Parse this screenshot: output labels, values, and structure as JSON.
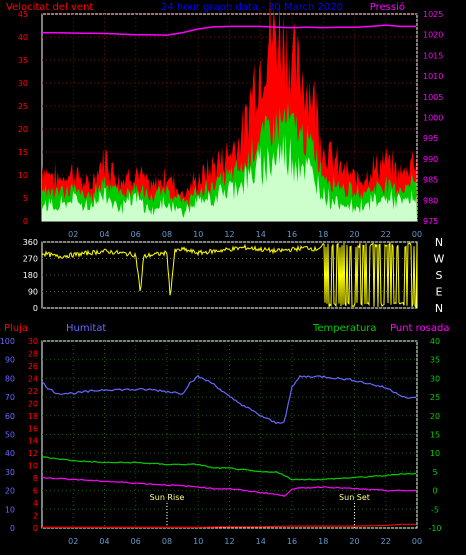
{
  "chart_data": [
    {
      "type": "line",
      "title": "24 hour graph data - 30 March 2020",
      "left_label": "Velocitat del vent",
      "right_label": "Pressió",
      "x_ticks": [
        "02",
        "04",
        "06",
        "08",
        "10",
        "12",
        "14",
        "16",
        "18",
        "20",
        "22",
        "00"
      ],
      "y_left_ticks": [
        "0",
        "5",
        "10",
        "15",
        "20",
        "25",
        "30",
        "35",
        "40",
        "45"
      ],
      "y_right_ticks": [
        "975",
        "980",
        "985",
        "990",
        "995",
        "1000",
        "1005",
        "1010",
        "1015",
        "1020",
        "1025"
      ],
      "ylim_left": [
        0,
        45
      ],
      "ylim_right": [
        975,
        1025
      ],
      "colors": {
        "gust": "#ff0000",
        "avg": "#00cc00",
        "speed": "#ccffcc",
        "pressure": "#ff00ff",
        "title": "#0000ff",
        "left_axis": "#ff0000",
        "right_axis": "#ff00ff"
      },
      "series": [
        {
          "key": "pressure",
          "x": [
            0,
            2,
            4,
            6,
            8,
            9,
            10,
            11,
            12,
            13,
            14,
            15,
            16,
            17,
            18,
            19,
            20,
            21,
            22,
            23,
            24
          ],
          "values": [
            1020.5,
            1020.4,
            1020.3,
            1020,
            1019.9,
            1020.5,
            1021.4,
            1021.9,
            1022,
            1022,
            1022,
            1021.8,
            1021.7,
            1021.8,
            1021.7,
            1021.8,
            1021.8,
            1022,
            1022.3,
            1022,
            1022
          ]
        },
        {
          "key": "gust",
          "x": [
            0,
            1,
            2,
            3,
            4,
            5,
            6,
            7,
            8,
            9,
            10,
            11,
            12,
            13,
            13.5,
            14,
            14.5,
            15,
            15.5,
            16,
            16.5,
            17,
            17.5,
            18,
            19,
            20,
            21,
            22,
            23,
            24
          ],
          "values": [
            12,
            9,
            11,
            7,
            14,
            9,
            11,
            7,
            10,
            6,
            9,
            12,
            15,
            20,
            30,
            34,
            40,
            41,
            40,
            35,
            32,
            30,
            26,
            16,
            12,
            9,
            11,
            13,
            10,
            15
          ]
        },
        {
          "key": "avg",
          "x": [
            0,
            1,
            2,
            3,
            4,
            5,
            6,
            7,
            8,
            9,
            10,
            11,
            12,
            13,
            13.5,
            14,
            14.5,
            15,
            15.5,
            16,
            16.5,
            17,
            17.5,
            18,
            19,
            20,
            21,
            22,
            23,
            24
          ],
          "values": [
            7,
            6,
            7,
            5,
            9,
            6,
            7,
            5,
            7,
            4,
            6,
            8,
            10,
            12,
            16,
            18,
            20,
            21,
            22,
            21,
            19,
            17,
            15,
            10,
            8,
            6,
            7,
            8,
            7,
            9
          ]
        },
        {
          "key": "speed",
          "x": [
            0,
            1,
            2,
            3,
            4,
            5,
            6,
            7,
            8,
            9,
            10,
            11,
            12,
            13,
            13.5,
            14,
            14.5,
            15,
            15.5,
            16,
            16.5,
            17,
            17.5,
            18,
            19,
            20,
            21,
            22,
            23,
            24
          ],
          "values": [
            4,
            3,
            5,
            3,
            6,
            3,
            5,
            2,
            4,
            2,
            4,
            5,
            7,
            9,
            10,
            12,
            13,
            14,
            15,
            14,
            13,
            11,
            9,
            6,
            4,
            3,
            4,
            5,
            4,
            5
          ]
        }
      ]
    },
    {
      "type": "scatter",
      "y_ticks": [
        "360",
        "270",
        "180",
        "90",
        "0"
      ],
      "ylim": [
        0,
        360
      ],
      "compass": [
        "N",
        "W",
        "S",
        "E",
        "N"
      ],
      "color": "#ffff00",
      "series": [
        {
          "key": "direction",
          "x": [
            0,
            1,
            2,
            3,
            4,
            5,
            6,
            6.3,
            6.5,
            7,
            8,
            8.2,
            8.5,
            9,
            10,
            11,
            12,
            13,
            14,
            15,
            16,
            17,
            17.5,
            18,
            18.3,
            18.6,
            18.9,
            19.2,
            19.5,
            19.8,
            20.1,
            20.4,
            20.7,
            21,
            21.3,
            21.6,
            21.9,
            22.2,
            22.5,
            22.8,
            23.1,
            23.4,
            23.7,
            24
          ],
          "values": [
            300,
            280,
            290,
            300,
            310,
            300,
            290,
            80,
            280,
            290,
            300,
            60,
            310,
            320,
            300,
            310,
            320,
            330,
            320,
            310,
            320,
            330,
            320,
            340,
            20,
            330,
            30,
            320,
            20,
            340,
            10,
            330,
            30,
            20,
            300,
            10,
            320,
            20,
            300,
            10,
            320,
            30,
            300,
            20
          ]
        }
      ]
    },
    {
      "type": "line",
      "labels": {
        "rain": "Pluja",
        "humidity": "Humitat",
        "temperature": "Temperatura",
        "dewpoint": "Punt rosada"
      },
      "annotations": [
        "Sun Rise",
        "Sun Set"
      ],
      "annotation_x": [
        8,
        20
      ],
      "rain_ticks": [
        "0",
        "2",
        "4",
        "6",
        "8",
        "10",
        "12",
        "14",
        "16",
        "18",
        "20",
        "22",
        "24",
        "26",
        "28",
        "30"
      ],
      "humidity_ticks": [
        "0",
        "10",
        "20",
        "30",
        "40",
        "50",
        "60",
        "70",
        "80",
        "90",
        "100"
      ],
      "temp_ticks": [
        "-10",
        "-5",
        "0",
        "5",
        "10",
        "15",
        "20",
        "25",
        "30",
        "35",
        "40"
      ],
      "ylim_temp": [
        -10,
        40
      ],
      "ylim_humidity": [
        0,
        100
      ],
      "colors": {
        "rain": "#ff0000",
        "humidity": "#6666ff",
        "temperature": "#00cc00",
        "dewpoint": "#ff00ff",
        "axis_left": "#ff0000",
        "axis_mid": "#6666ff",
        "axis_right": "#00cc00",
        "label_right": "#ff00ff"
      },
      "series": [
        {
          "key": "humidity",
          "x": [
            0,
            0.5,
            1,
            2,
            3,
            4,
            5,
            6,
            7,
            8,
            9,
            9.5,
            10,
            11,
            12,
            13,
            14,
            15,
            15.5,
            16,
            16.5,
            17,
            18,
            19,
            20,
            21,
            22,
            23,
            23.5,
            24
          ],
          "values": [
            78,
            74,
            72,
            72,
            73,
            74,
            74,
            74,
            74,
            73,
            72,
            78,
            81,
            77,
            70,
            65,
            60,
            56,
            57,
            75,
            81,
            81,
            81,
            80,
            79,
            77,
            75,
            71,
            69,
            70
          ]
        },
        {
          "key": "temperature",
          "x": [
            0,
            2,
            4,
            6,
            8,
            10,
            11,
            12,
            13,
            14,
            15,
            15.5,
            16,
            18,
            20,
            22,
            23,
            24
          ],
          "values": [
            9,
            8,
            7.5,
            7.5,
            7,
            7,
            6,
            6,
            5.5,
            5,
            5,
            4,
            3,
            3,
            3.5,
            4,
            4.5,
            4.5
          ]
        },
        {
          "key": "dewpoint",
          "x": [
            0,
            2,
            4,
            6,
            8,
            10,
            11,
            12,
            13,
            14,
            15,
            15.5,
            16,
            18,
            20,
            22,
            23,
            24
          ],
          "values": [
            3.5,
            3,
            2.5,
            2,
            1.5,
            1,
            0.5,
            0.5,
            0,
            -0.5,
            -1,
            -1.5,
            0.5,
            1,
            0.5,
            0,
            0,
            0
          ]
        },
        {
          "key": "rain",
          "x": [
            0,
            10,
            12,
            14,
            16,
            18,
            20,
            22,
            23,
            24
          ],
          "values": [
            0.1,
            0.1,
            0.2,
            0.2,
            0.3,
            0.3,
            0.3,
            0.4,
            0.6,
            0.6
          ]
        }
      ]
    }
  ]
}
